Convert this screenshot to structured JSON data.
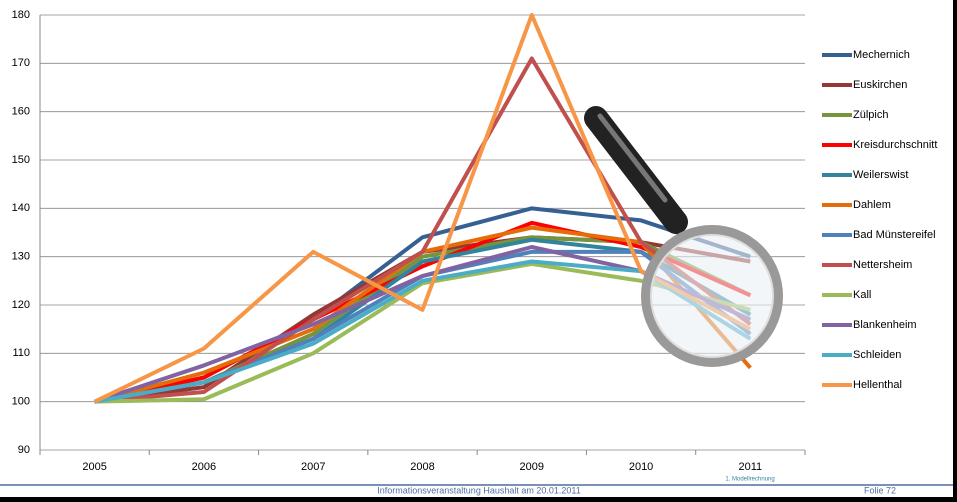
{
  "chart_data": {
    "type": "line",
    "categories": [
      "2005",
      "2006",
      "2007",
      "2008",
      "2009",
      "2010",
      "2011"
    ],
    "ylim": [
      90,
      180
    ],
    "yticks": [
      90,
      100,
      110,
      120,
      130,
      140,
      150,
      160,
      170,
      180
    ],
    "grid": true,
    "series": [
      {
        "name": "Mechernich",
        "color": "#376092",
        "values": [
          100,
          105,
          117,
          134,
          140,
          137.5,
          130
        ]
      },
      {
        "name": "Euskirchen",
        "color": "#953735",
        "values": [
          100,
          103,
          118,
          131,
          134,
          133,
          129
        ]
      },
      {
        "name": "Zülpich",
        "color": "#77933c",
        "values": [
          100,
          104,
          114,
          130,
          134,
          133,
          122
        ]
      },
      {
        "name": "Kreisdurchschnitt",
        "color": "#ff0000",
        "values": [
          100,
          105,
          117,
          128,
          137,
          132,
          122
        ]
      },
      {
        "name": "Weilerswist",
        "color": "#31849b",
        "values": [
          100,
          104,
          113,
          129,
          133.5,
          131,
          118
        ]
      },
      {
        "name": "Dahlem",
        "color": "#e46c0a",
        "values": [
          100,
          106,
          115,
          131,
          136,
          133,
          107
        ]
      },
      {
        "name": "Bad Münstereifel",
        "color": "#4f81bd",
        "values": [
          100,
          104,
          113,
          126,
          131,
          131,
          114
        ]
      },
      {
        "name": "Nettersheim",
        "color": "#c0504d",
        "values": [
          100,
          102,
          117,
          131,
          171,
          133,
          116
        ]
      },
      {
        "name": "Kall",
        "color": "#9bbb59",
        "values": [
          100,
          100.5,
          110,
          124.5,
          128.5,
          125,
          119
        ]
      },
      {
        "name": "Blankenheim",
        "color": "#8064a2",
        "values": [
          100,
          107.5,
          116,
          126,
          132,
          127,
          117
        ]
      },
      {
        "name": "Schleiden",
        "color": "#4bacc6",
        "values": [
          100,
          104,
          112,
          125,
          129,
          127,
          113
        ]
      },
      {
        "name": "Hellenthal",
        "color": "#f79646",
        "values": [
          100,
          111,
          131,
          119,
          180,
          127,
          115
        ]
      }
    ]
  },
  "footer": {
    "subnote": "1. Modellrechnung",
    "center": "Informationsveranstaltung Haushalt am 20.01.2011",
    "page": "Folie 72"
  }
}
